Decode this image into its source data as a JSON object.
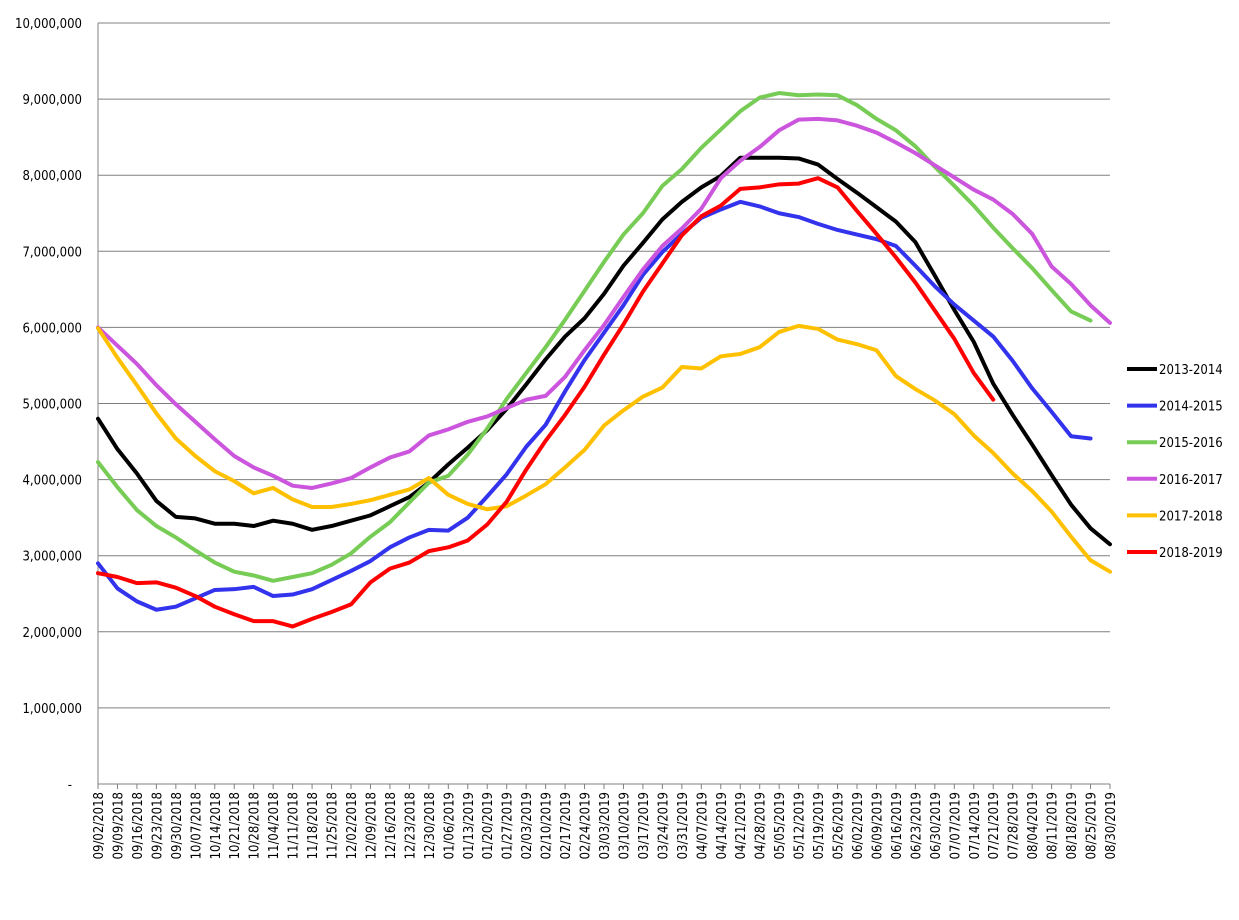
{
  "chart_data": {
    "type": "line",
    "title": "",
    "xlabel": "",
    "ylabel": "",
    "ylim": [
      0,
      10000000
    ],
    "y_ticks": [
      {
        "value": 0,
        "label": "-"
      },
      {
        "value": 1000000,
        "label": "1,000,000"
      },
      {
        "value": 2000000,
        "label": "2,000,000"
      },
      {
        "value": 3000000,
        "label": "3,000,000"
      },
      {
        "value": 4000000,
        "label": "4,000,000"
      },
      {
        "value": 5000000,
        "label": "5,000,000"
      },
      {
        "value": 6000000,
        "label": "6,000,000"
      },
      {
        "value": 7000000,
        "label": "7,000,000"
      },
      {
        "value": 8000000,
        "label": "8,000,000"
      },
      {
        "value": 9000000,
        "label": "9,000,000"
      },
      {
        "value": 10000000,
        "label": "10,000,000"
      }
    ],
    "grid": true,
    "legend_position": "right",
    "categories": [
      "09/02/2018",
      "09/09/2018",
      "09/16/2018",
      "09/23/2018",
      "09/30/2018",
      "10/07/2018",
      "10/14/2018",
      "10/21/2018",
      "10/28/2018",
      "11/04/2018",
      "11/11/2018",
      "11/18/2018",
      "11/25/2018",
      "12/02/2018",
      "12/09/2018",
      "12/16/2018",
      "12/23/2018",
      "12/30/2018",
      "01/06/2019",
      "01/13/2019",
      "01/20/2019",
      "01/27/2019",
      "02/03/2019",
      "02/10/2019",
      "02/17/2019",
      "02/24/2019",
      "03/03/2019",
      "03/10/2019",
      "03/17/2019",
      "03/24/2019",
      "03/31/2019",
      "04/07/2019",
      "04/14/2019",
      "04/21/2019",
      "04/28/2019",
      "05/05/2019",
      "05/12/2019",
      "05/19/2019",
      "05/26/2019",
      "06/02/2019",
      "06/09/2019",
      "06/16/2019",
      "06/23/2019",
      "06/30/2019",
      "07/07/2019",
      "07/14/2019",
      "07/21/2019",
      "07/28/2019",
      "08/04/2019",
      "08/11/2019",
      "08/18/2019",
      "08/25/2019",
      "08/30/2019"
    ],
    "series": [
      {
        "name": "2013-2014",
        "color": "#000000",
        "values": [
          4800000,
          4400000,
          4080000,
          3720000,
          3510000,
          3490000,
          3420000,
          3420000,
          3390000,
          3460000,
          3420000,
          3340000,
          3390000,
          3460000,
          3530000,
          3650000,
          3770000,
          3960000,
          4200000,
          4420000,
          4650000,
          4930000,
          5250000,
          5580000,
          5880000,
          6120000,
          6440000,
          6810000,
          7110000,
          7420000,
          7650000,
          7840000,
          7990000,
          8230000,
          8230000,
          8230000,
          8220000,
          8140000,
          7950000,
          7770000,
          7580000,
          7390000,
          7120000,
          6680000,
          6230000,
          5810000,
          5260000,
          4850000,
          4460000,
          4060000,
          3670000,
          3360000,
          3150000
        ]
      },
      {
        "name": "2014-2015",
        "color": "#3333ee",
        "values": [
          2900000,
          2570000,
          2400000,
          2290000,
          2330000,
          2440000,
          2550000,
          2560000,
          2590000,
          2470000,
          2490000,
          2560000,
          2680000,
          2800000,
          2930000,
          3110000,
          3240000,
          3340000,
          3330000,
          3500000,
          3780000,
          4070000,
          4430000,
          4720000,
          5160000,
          5570000,
          5930000,
          6290000,
          6690000,
          6990000,
          7230000,
          7440000,
          7550000,
          7650000,
          7590000,
          7500000,
          7450000,
          7360000,
          7280000,
          7220000,
          7160000,
          7070000,
          6810000,
          6540000,
          6300000,
          6090000,
          5880000,
          5560000,
          5200000,
          4890000,
          4570000,
          4540000,
          null
        ]
      },
      {
        "name": "2015-2016",
        "color": "#77cc55",
        "values": [
          4230000,
          3900000,
          3600000,
          3390000,
          3240000,
          3070000,
          2910000,
          2790000,
          2740000,
          2670000,
          2720000,
          2770000,
          2880000,
          3030000,
          3250000,
          3440000,
          3700000,
          3960000,
          4050000,
          4330000,
          4670000,
          5060000,
          5400000,
          5740000,
          6100000,
          6480000,
          6860000,
          7220000,
          7500000,
          7860000,
          8080000,
          8360000,
          8600000,
          8840000,
          9020000,
          9080000,
          9050000,
          9060000,
          9050000,
          8920000,
          8740000,
          8590000,
          8380000,
          8110000,
          7860000,
          7600000,
          7310000,
          7040000,
          6780000,
          6490000,
          6210000,
          6090000,
          null
        ]
      },
      {
        "name": "2016-2017",
        "color": "#cc55dd",
        "values": [
          6000000,
          5760000,
          5520000,
          5240000,
          4990000,
          4760000,
          4530000,
          4310000,
          4160000,
          4050000,
          3920000,
          3890000,
          3950000,
          4020000,
          4160000,
          4290000,
          4370000,
          4580000,
          4660000,
          4760000,
          4830000,
          4940000,
          5050000,
          5100000,
          5350000,
          5700000,
          6030000,
          6400000,
          6760000,
          7070000,
          7300000,
          7560000,
          7960000,
          8190000,
          8370000,
          8590000,
          8730000,
          8740000,
          8720000,
          8650000,
          8560000,
          8430000,
          8290000,
          8130000,
          7970000,
          7810000,
          7680000,
          7490000,
          7230000,
          6800000,
          6570000,
          6290000,
          6060000
        ]
      },
      {
        "name": "2017-2018",
        "color": "#ffc000",
        "values": [
          5990000,
          5600000,
          5240000,
          4870000,
          4540000,
          4310000,
          4110000,
          3980000,
          3820000,
          3890000,
          3740000,
          3640000,
          3640000,
          3680000,
          3730000,
          3800000,
          3870000,
          4020000,
          3800000,
          3680000,
          3610000,
          3650000,
          3790000,
          3940000,
          4160000,
          4390000,
          4710000,
          4910000,
          5090000,
          5210000,
          5480000,
          5460000,
          5620000,
          5650000,
          5740000,
          5940000,
          6020000,
          5980000,
          5840000,
          5780000,
          5700000,
          5360000,
          5190000,
          5040000,
          4860000,
          4580000,
          4350000,
          4080000,
          3850000,
          3580000,
          3250000,
          2940000,
          2790000
        ]
      },
      {
        "name": "2018-2019",
        "color": "#ff0000",
        "values": [
          2770000,
          2720000,
          2640000,
          2650000,
          2580000,
          2470000,
          2330000,
          2230000,
          2140000,
          2140000,
          2070000,
          2170000,
          2260000,
          2360000,
          2650000,
          2830000,
          2910000,
          3060000,
          3110000,
          3200000,
          3410000,
          3710000,
          4130000,
          4510000,
          4850000,
          5220000,
          5640000,
          6040000,
          6470000,
          6840000,
          7210000,
          7460000,
          7600000,
          7820000,
          7840000,
          7880000,
          7890000,
          7960000,
          7840000,
          7530000,
          7230000,
          6920000,
          6590000,
          6220000,
          5850000,
          5400000,
          5050000,
          null,
          null,
          null,
          null,
          null,
          null
        ]
      }
    ]
  }
}
